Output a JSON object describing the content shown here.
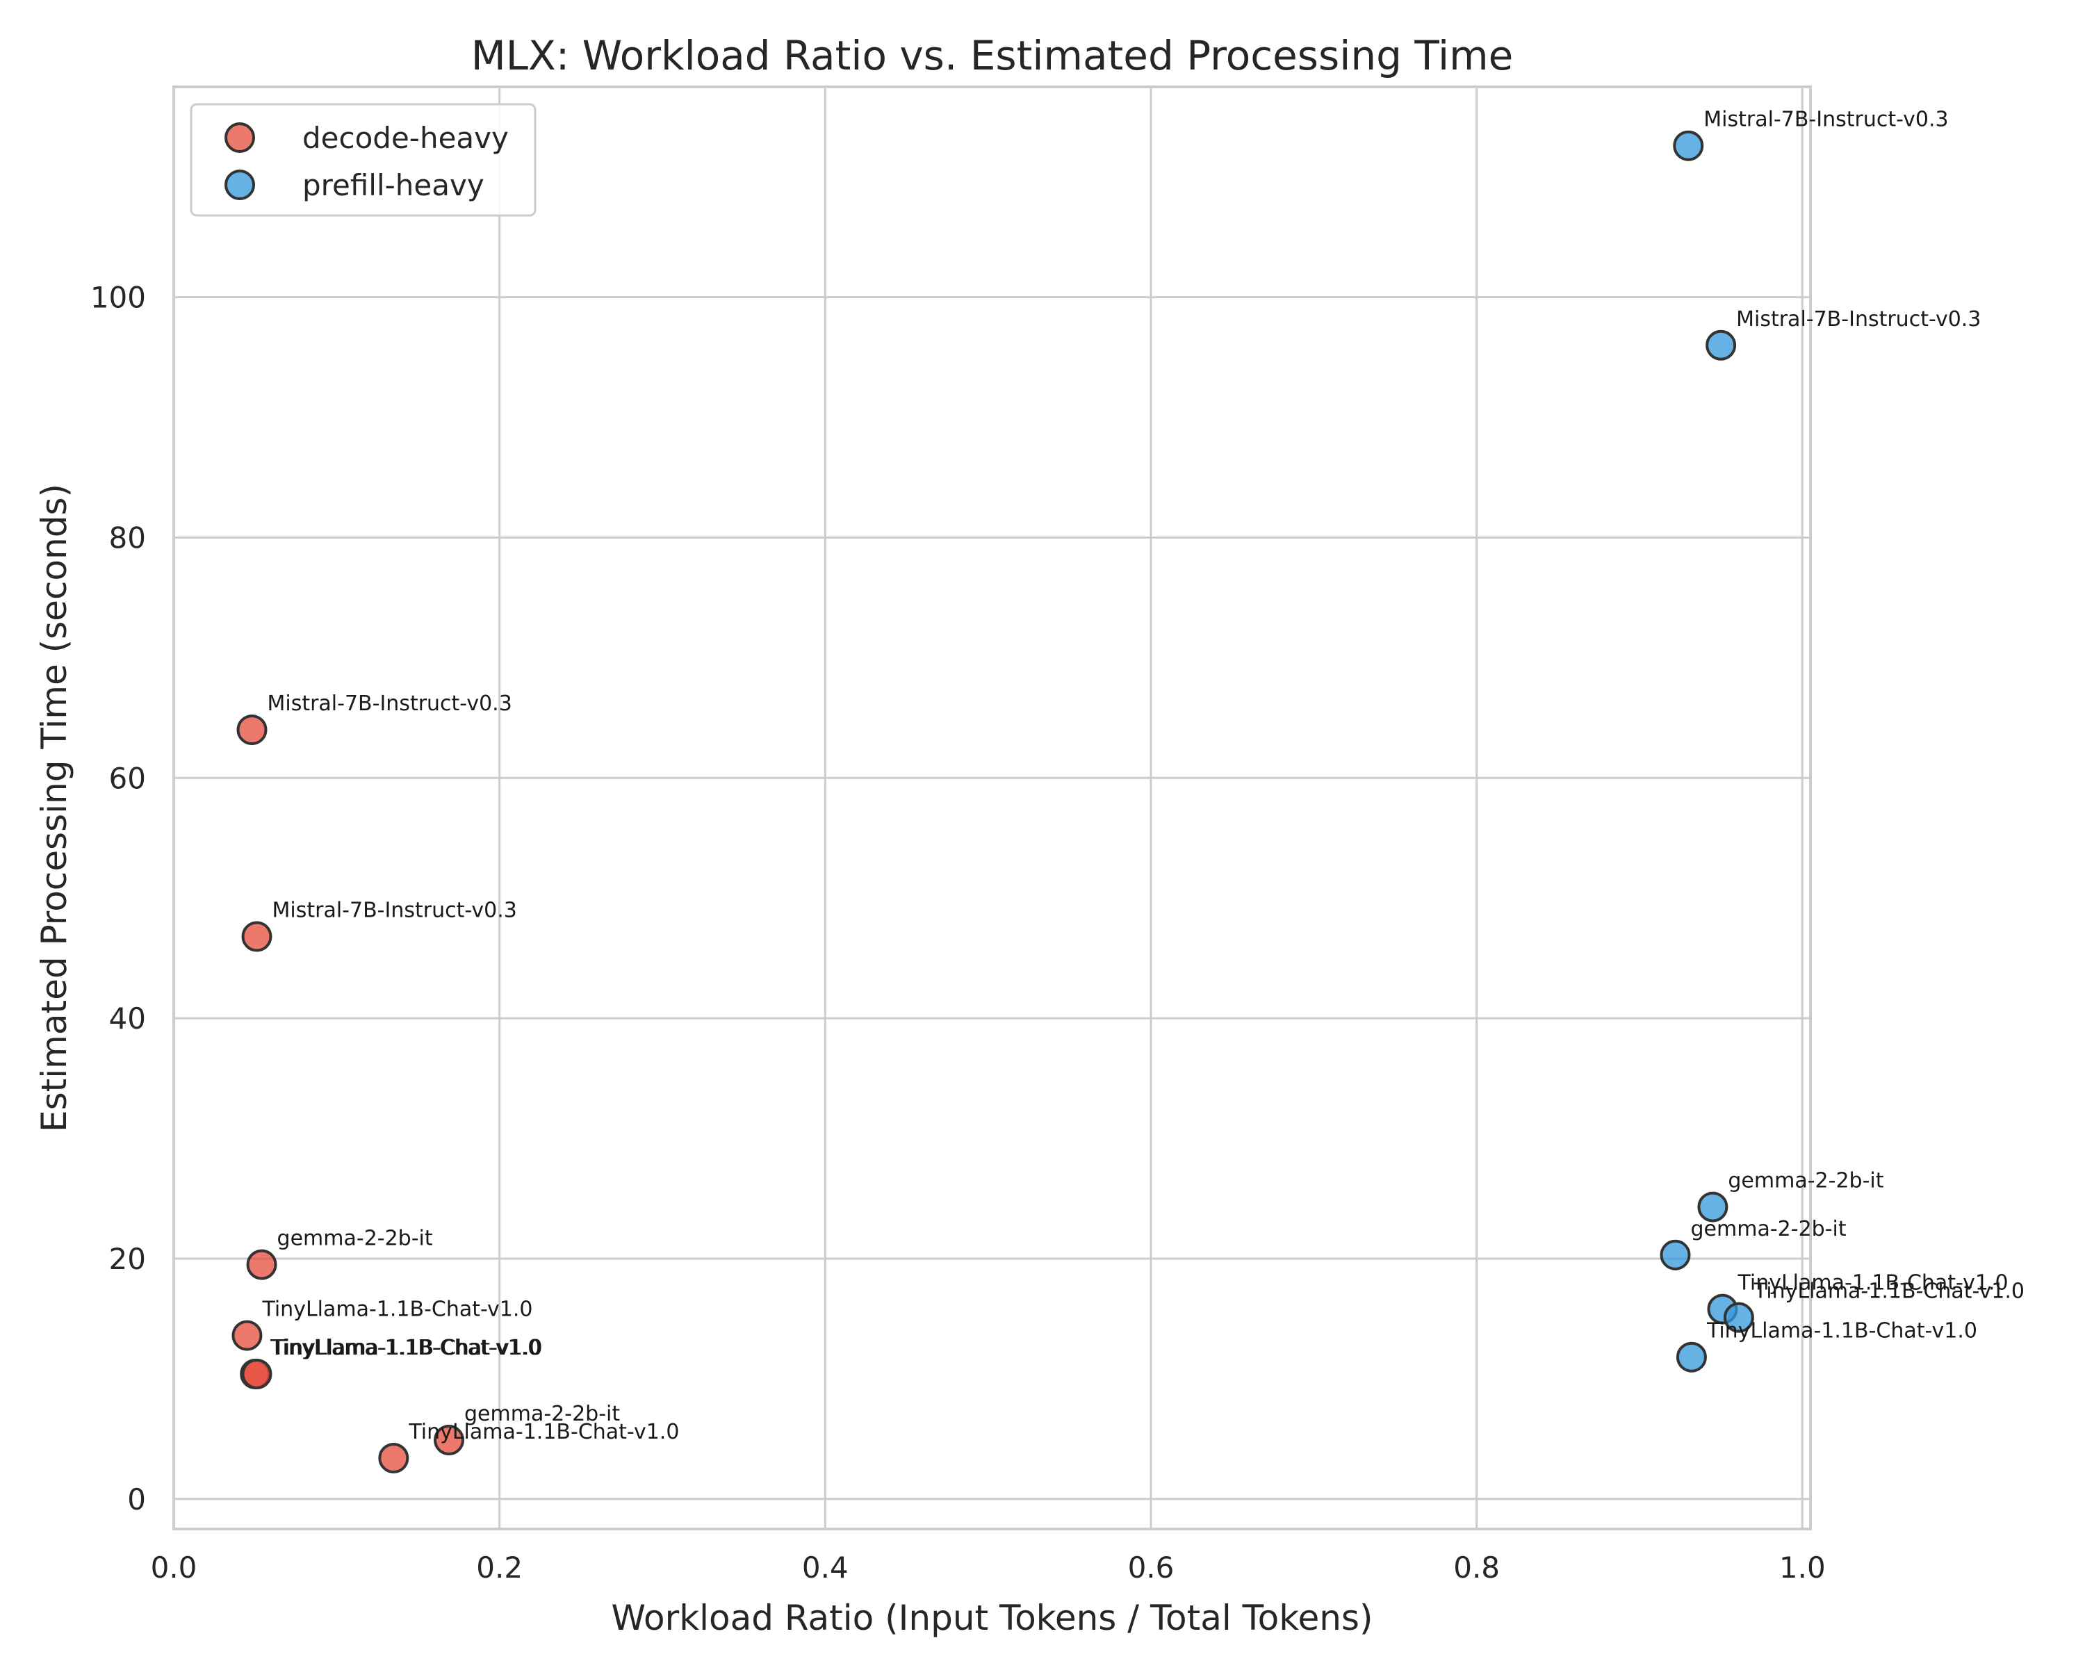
{
  "chart_data": {
    "type": "scatter",
    "title": "MLX: Workload Ratio vs. Estimated Processing Time",
    "xlabel": "Workload Ratio (Input Tokens / Total Tokens)",
    "ylabel": "Estimated Processing Time (seconds)",
    "xlim": [
      0.0,
      1.005
    ],
    "ylim": [
      -2.5,
      117.5
    ],
    "xticks": [
      0.0,
      0.2,
      0.4,
      0.6,
      0.8,
      1.0
    ],
    "xtick_labels": [
      "0.0",
      "0.2",
      "0.4",
      "0.6",
      "0.8",
      "1.0"
    ],
    "yticks": [
      0,
      20,
      40,
      60,
      80,
      100
    ],
    "ytick_labels": [
      "0",
      "20",
      "40",
      "60",
      "80",
      "100"
    ],
    "grid": true,
    "legend_position": "top-left",
    "series": [
      {
        "name": "decode-heavy",
        "color": "#e74c3c",
        "points": [
          {
            "x": 0.048,
            "y": 64.0,
            "label": "Mistral-7B-Instruct-v0.3"
          },
          {
            "x": 0.051,
            "y": 46.8,
            "label": "Mistral-7B-Instruct-v0.3"
          },
          {
            "x": 0.054,
            "y": 19.5,
            "label": "gemma-2-2b-it"
          },
          {
            "x": 0.045,
            "y": 13.6,
            "label": "TinyLlama-1.1B-Chat-v1.0"
          },
          {
            "x": 0.05,
            "y": 10.4,
            "label": "TinyLlama-1.1B-Chat-v1.0"
          },
          {
            "x": 0.051,
            "y": 10.4,
            "label": "TinyLlama-1.1B-Chat-v1.0"
          },
          {
            "x": 0.169,
            "y": 4.9,
            "label": "gemma-2-2b-it"
          },
          {
            "x": 0.135,
            "y": 3.4,
            "label": "TinyLlama-1.1B-Chat-v1.0"
          }
        ]
      },
      {
        "name": "prefill-heavy",
        "color": "#3498db",
        "points": [
          {
            "x": 0.93,
            "y": 112.6,
            "label": "Mistral-7B-Instruct-v0.3"
          },
          {
            "x": 0.95,
            "y": 96.0,
            "label": "Mistral-7B-Instruct-v0.3"
          },
          {
            "x": 0.945,
            "y": 24.3,
            "label": "gemma-2-2b-it"
          },
          {
            "x": 0.922,
            "y": 20.3,
            "label": "gemma-2-2b-it"
          },
          {
            "x": 0.951,
            "y": 15.8,
            "label": "TinyLlama-1.1B-Chat-v1.0"
          },
          {
            "x": 0.961,
            "y": 15.1,
            "label": "TinyLlama-1.1B-Chat-v1.0"
          },
          {
            "x": 0.932,
            "y": 11.8,
            "label": "TinyLlama-1.1B-Chat-v1.0"
          }
        ]
      }
    ]
  }
}
